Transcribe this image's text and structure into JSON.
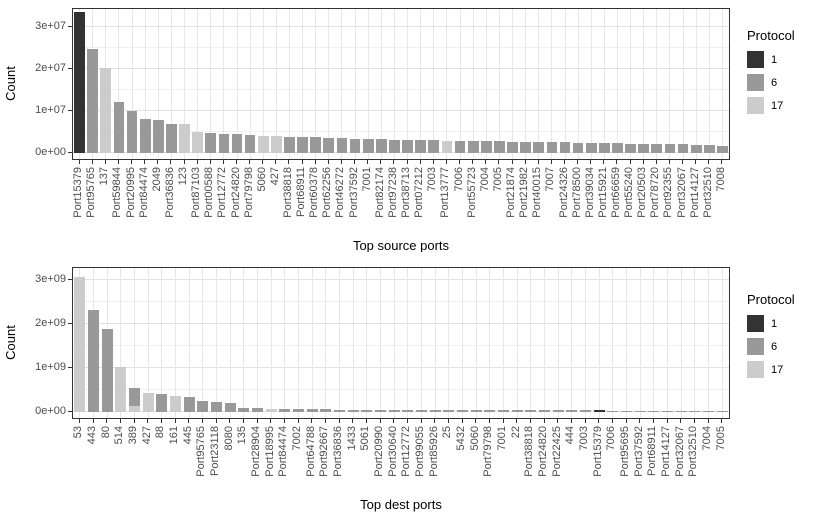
{
  "legend": {
    "title": "Protocol",
    "entries": [
      {
        "label": "1",
        "color": "#333333"
      },
      {
        "label": "6",
        "color": "#999999"
      },
      {
        "label": "17",
        "color": "#cccccc"
      }
    ]
  },
  "chart_data": [
    {
      "type": "bar",
      "title": "",
      "xlabel": "Top source ports",
      "ylabel": "Count",
      "ytick_labels": [
        "0e+00",
        "1e+07",
        "2e+07",
        "3e+07"
      ],
      "ytick_step": 10000000,
      "ylim": [
        0,
        35000000
      ],
      "grid": true,
      "legend_position": "right",
      "bars": [
        [
          "Port15379",
          33600000,
          "1"
        ],
        [
          "Port95765",
          24700000,
          "6"
        ],
        [
          "137",
          20200000,
          "17"
        ],
        [
          "Port59844",
          12200000,
          "6"
        ],
        [
          "Port20995",
          10000000,
          "6"
        ],
        [
          "Port84474",
          8000000,
          "6"
        ],
        [
          "2049",
          7900000,
          "6"
        ],
        [
          "Port36836",
          7000000,
          "6"
        ],
        [
          "123",
          6900000,
          "17"
        ],
        [
          "Port87103",
          5000000,
          "17"
        ],
        [
          "Port00588",
          4800000,
          "6"
        ],
        [
          "Port12772",
          4600000,
          "6"
        ],
        [
          "Port24820",
          4500000,
          "6"
        ],
        [
          "Port79798",
          4300000,
          "6"
        ],
        [
          "5060",
          4100000,
          "17"
        ],
        [
          "427",
          4000000,
          "17"
        ],
        [
          "Port38818",
          3900000,
          "6"
        ],
        [
          "Port68911",
          3800000,
          "6"
        ],
        [
          "Port60378",
          3700000,
          "6"
        ],
        [
          "Port62256",
          3600000,
          "6"
        ],
        [
          "Port46272",
          3500000,
          "6"
        ],
        [
          "Port37592",
          3400000,
          "6"
        ],
        [
          "7001",
          3350000,
          "6"
        ],
        [
          "Port82174",
          3300000,
          "6"
        ],
        [
          "Port97238",
          3200000,
          "6"
        ],
        [
          "Port38713",
          3150000,
          "6"
        ],
        [
          "Port07212",
          3100000,
          "6"
        ],
        [
          "7003",
          3000000,
          "6"
        ],
        [
          "Port13777",
          2950000,
          "17"
        ],
        [
          "7006",
          2900000,
          "6"
        ],
        [
          "Port55723",
          2850000,
          "6"
        ],
        [
          "7004",
          2800000,
          "6"
        ],
        [
          "7005",
          2750000,
          "6"
        ],
        [
          "Port21874",
          2700000,
          "6"
        ],
        [
          "Port21982",
          2650000,
          "6"
        ],
        [
          "Port40015",
          2600000,
          "6"
        ],
        [
          "7007",
          2550000,
          "6"
        ],
        [
          "Port24326",
          2500000,
          "6"
        ],
        [
          "Port78500",
          2450000,
          "6"
        ],
        [
          "Port39034",
          2400000,
          "6"
        ],
        [
          "Port15921",
          2350000,
          "6"
        ],
        [
          "Port66659",
          2300000,
          "6"
        ],
        [
          "Port55240",
          2250000,
          "6"
        ],
        [
          "Port20503",
          2200000,
          "6"
        ],
        [
          "Port78720",
          2150000,
          "6"
        ],
        [
          "Port92355",
          2100000,
          "6"
        ],
        [
          "Port32067",
          2050000,
          "6"
        ],
        [
          "Port14127",
          2000000,
          "6"
        ],
        [
          "Port32510",
          1900000,
          "6"
        ],
        [
          "7008",
          1700000,
          "6"
        ]
      ]
    },
    {
      "type": "bar",
      "title": "",
      "xlabel": "Top dest ports",
      "ylabel": "Count",
      "ytick_labels": [
        "0e+00",
        "1e+09",
        "2e+09",
        "3e+09"
      ],
      "ytick_step": 1000000000,
      "ylim": [
        0,
        3250000000
      ],
      "grid": true,
      "legend_position": "right",
      "bars": [
        [
          "53",
          3070000000,
          "17"
        ],
        [
          "443",
          2320000000,
          "6"
        ],
        [
          "80",
          1880000000,
          "6"
        ],
        [
          "514",
          1020000000,
          "17"
        ],
        [
          "389",
          130000000,
          "17",
          420000000,
          "6"
        ],
        [
          "427",
          430000000,
          "17"
        ],
        [
          "88",
          400000000,
          "6"
        ],
        [
          "161",
          370000000,
          "17"
        ],
        [
          "445",
          340000000,
          "6"
        ],
        [
          "Port95765",
          250000000,
          "6"
        ],
        [
          "Port23118",
          220000000,
          "6"
        ],
        [
          "8080",
          200000000,
          "6"
        ],
        [
          "135",
          100000000,
          "6"
        ],
        [
          "Port28904",
          100000000,
          "6"
        ],
        [
          "Port18995",
          60000000,
          "17"
        ],
        [
          "Port84474",
          70000000,
          "6"
        ],
        [
          "7002",
          65000000,
          "6"
        ],
        [
          "Port64788",
          60000000,
          "6"
        ],
        [
          "Port92667",
          60000000,
          "6"
        ],
        [
          "Port36836",
          55000000,
          "6"
        ],
        [
          "1433",
          50000000,
          "6"
        ],
        [
          "5061",
          50000000,
          "6"
        ],
        [
          "Port20990",
          50000000,
          "6"
        ],
        [
          "Port30640",
          50000000,
          "6"
        ],
        [
          "Port12772",
          48000000,
          "6"
        ],
        [
          "Port99055",
          46000000,
          "6"
        ],
        [
          "Port85926",
          45000000,
          "6"
        ],
        [
          "25",
          44000000,
          "6"
        ],
        [
          "5432",
          42000000,
          "6"
        ],
        [
          "5060",
          42000000,
          "6"
        ],
        [
          "Port79798",
          40000000,
          "6"
        ],
        [
          "7001",
          40000000,
          "6"
        ],
        [
          "22",
          40000000,
          "6"
        ],
        [
          "Port38818",
          38000000,
          "6"
        ],
        [
          "Port24820",
          38000000,
          "6"
        ],
        [
          "Port22425",
          36000000,
          "6"
        ],
        [
          "444",
          36000000,
          "6"
        ],
        [
          "7003",
          35000000,
          "6"
        ],
        [
          "Port15379",
          50000000,
          "1"
        ],
        [
          "7006",
          34000000,
          "6"
        ],
        [
          "Port95695",
          33000000,
          "6"
        ],
        [
          "Port37592",
          32000000,
          "6"
        ],
        [
          "Port68911",
          32000000,
          "6"
        ],
        [
          "Port14127",
          30000000,
          "6"
        ],
        [
          "Port32067",
          30000000,
          "6"
        ],
        [
          "Port32510",
          29000000,
          "6"
        ],
        [
          "7004",
          28000000,
          "6"
        ],
        [
          "7005",
          28000000,
          "6"
        ]
      ]
    }
  ]
}
